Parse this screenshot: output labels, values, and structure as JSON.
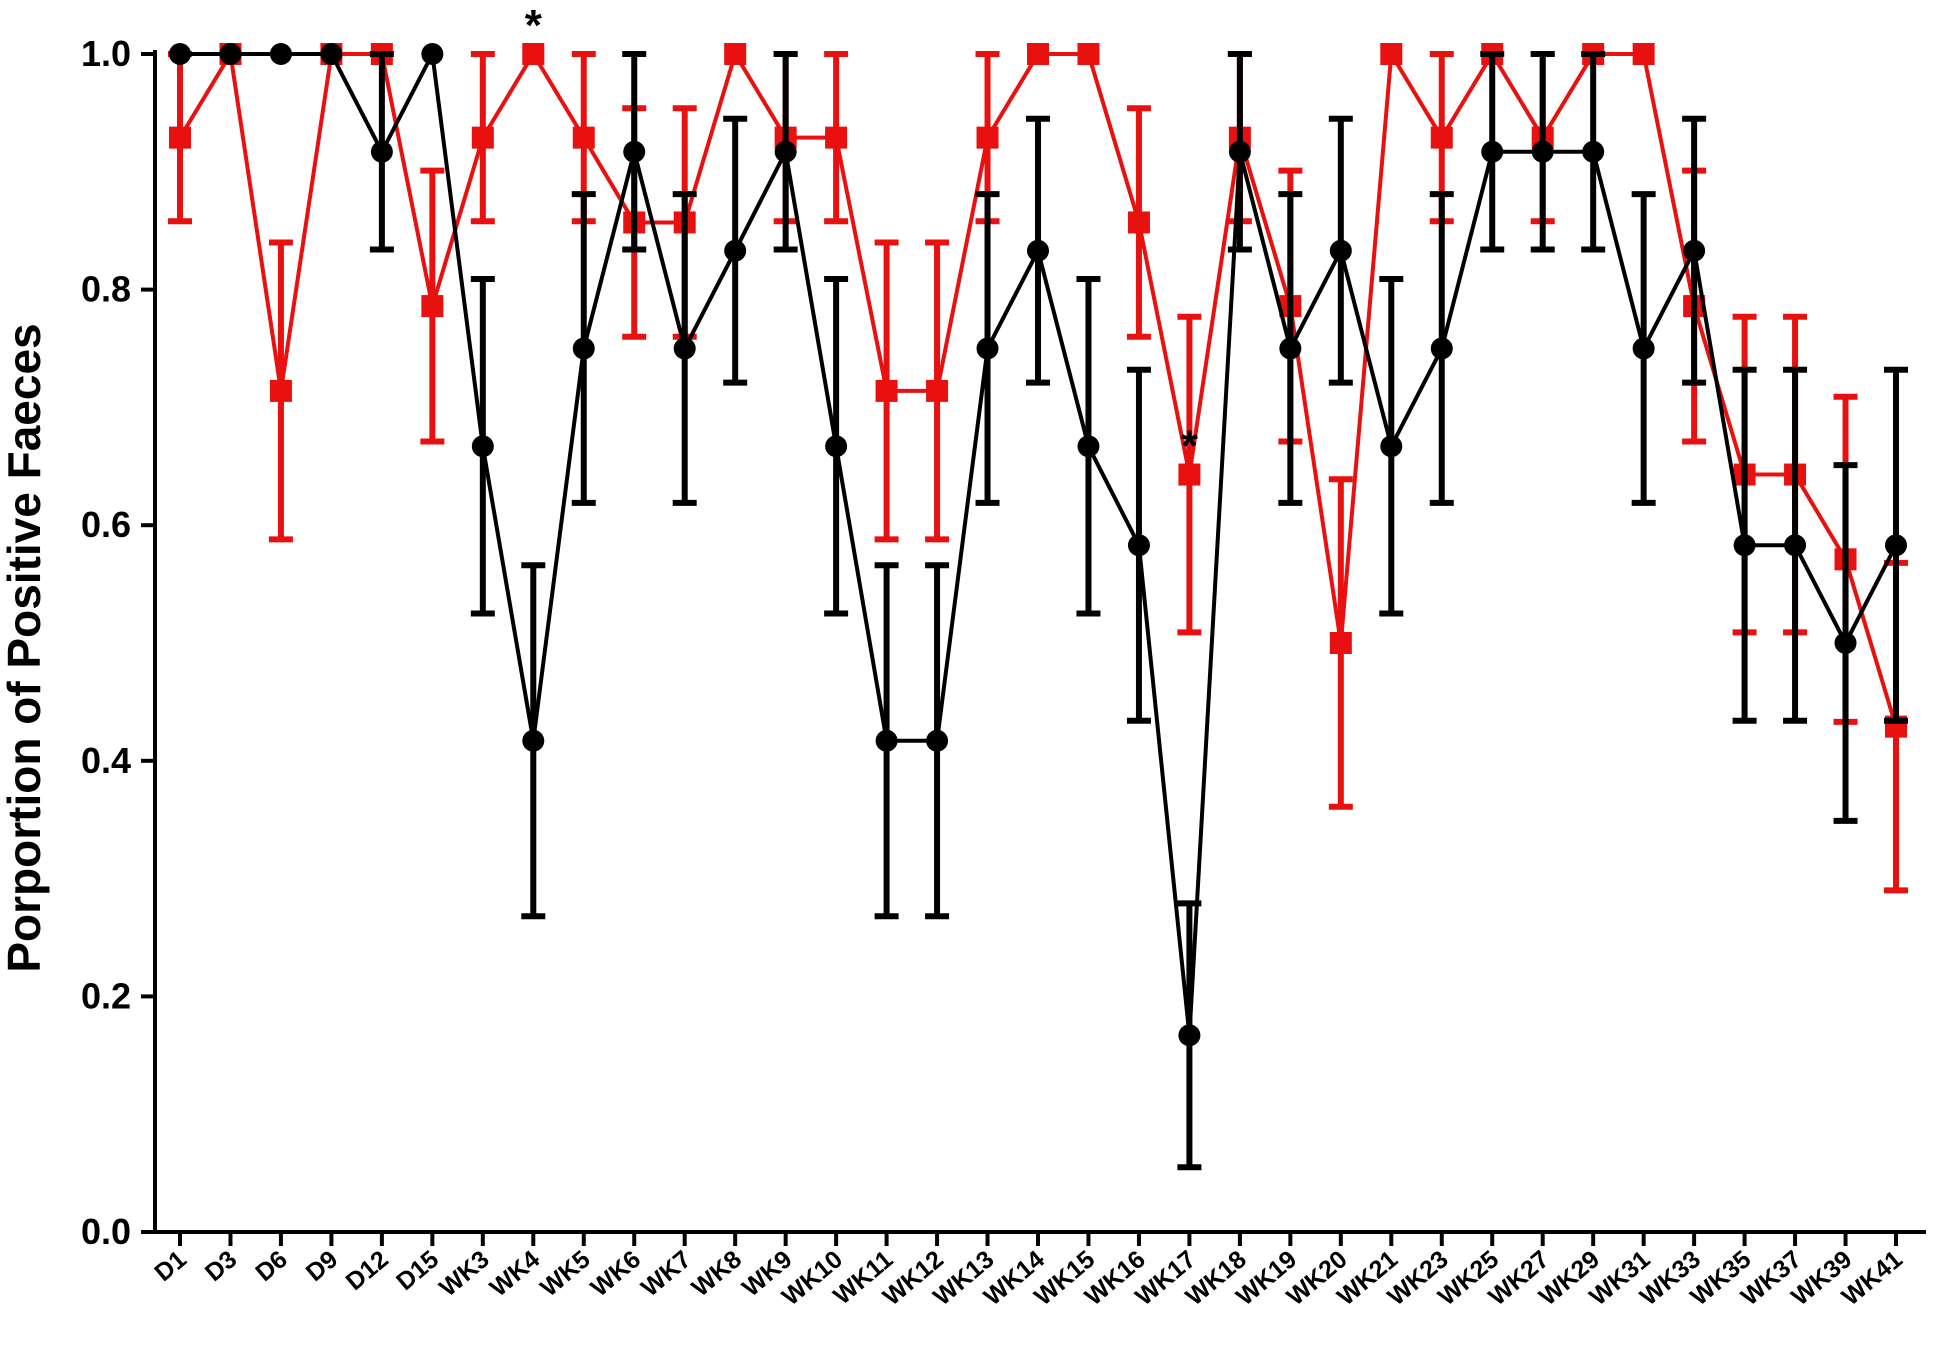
{
  "chart_data": {
    "type": "line",
    "title": "",
    "xlabel": "",
    "ylabel": "Porportion of Positive Faeces",
    "ylim": [
      0,
      1
    ],
    "yticks": [
      0.0,
      0.2,
      0.4,
      0.6,
      0.8,
      1.0
    ],
    "ytick_labels": [
      "0.0",
      "0.2",
      "0.4",
      "0.6",
      "0.8",
      "1.0"
    ],
    "grid": false,
    "legend": "none",
    "categories": [
      "D1",
      "D3",
      "D6",
      "D9",
      "D12",
      "D15",
      "WK3",
      "WK4",
      "WK5",
      "WK6",
      "WK7",
      "WK8",
      "WK9",
      "WK10",
      "WK11",
      "WK12",
      "WK13",
      "WK14",
      "WK15",
      "WK16",
      "WK17",
      "WK18",
      "WK19",
      "WK20",
      "WK21",
      "WK23",
      "WK25",
      "WK27",
      "WK29",
      "WK31",
      "WK33",
      "WK35",
      "WK37",
      "WK39",
      "WK41"
    ],
    "series": [
      {
        "color": "#e8110f",
        "marker": "square",
        "values": [
          0.929,
          1.0,
          0.714,
          1.0,
          1.0,
          0.786,
          0.929,
          1.0,
          0.929,
          0.857,
          0.857,
          1.0,
          0.929,
          0.929,
          0.714,
          0.714,
          0.929,
          1.0,
          1.0,
          0.857,
          0.643,
          0.929,
          0.786,
          0.5,
          1.0,
          0.929,
          1.0,
          0.929,
          1.0,
          1.0,
          0.786,
          0.643,
          0.643,
          0.571,
          0.429
        ],
        "error": [
          0.071,
          0.0,
          0.126,
          0.0,
          0.0,
          0.115,
          0.071,
          0.0,
          0.071,
          0.097,
          0.097,
          0.0,
          0.071,
          0.071,
          0.126,
          0.126,
          0.071,
          0.0,
          0.0,
          0.097,
          0.134,
          0.071,
          0.115,
          0.139,
          0.0,
          0.071,
          0.0,
          0.071,
          0.0,
          0.0,
          0.115,
          0.134,
          0.134,
          0.138,
          0.139
        ]
      },
      {
        "color": "#000000",
        "marker": "circle",
        "values": [
          1.0,
          1.0,
          1.0,
          1.0,
          0.917,
          1.0,
          0.667,
          0.417,
          0.75,
          0.917,
          0.75,
          0.833,
          0.917,
          0.667,
          0.417,
          0.417,
          0.75,
          0.833,
          0.667,
          0.583,
          0.167,
          0.917,
          0.75,
          0.833,
          0.667,
          0.75,
          0.917,
          0.917,
          0.917,
          0.75,
          0.833,
          0.583,
          0.583,
          0.5,
          0.583
        ],
        "error": [
          0.0,
          0.0,
          0.0,
          0.0,
          0.083,
          0.0,
          0.142,
          0.149,
          0.131,
          0.083,
          0.131,
          0.112,
          0.083,
          0.142,
          0.149,
          0.149,
          0.131,
          0.112,
          0.142,
          0.149,
          0.112,
          0.083,
          0.131,
          0.112,
          0.142,
          0.131,
          0.083,
          0.083,
          0.083,
          0.131,
          0.112,
          0.149,
          0.149,
          0.151,
          0.149
        ]
      }
    ],
    "annotations": [
      {
        "category": "WK4",
        "value": 1.0,
        "text": "*"
      },
      {
        "category": "WK17",
        "value": 0.643,
        "text": "*"
      }
    ]
  }
}
